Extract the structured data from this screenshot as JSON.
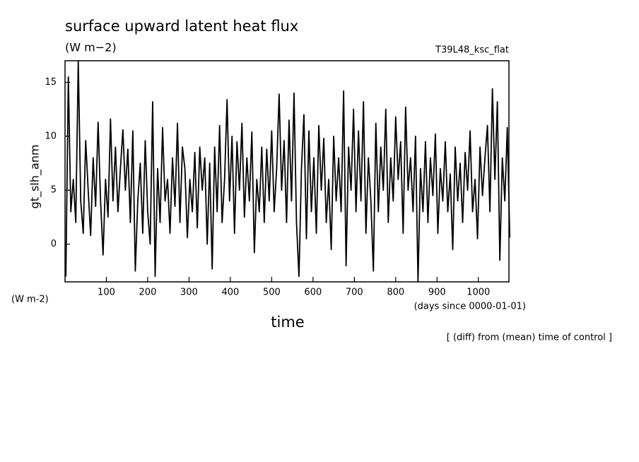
{
  "chart_data": {
    "type": "line",
    "title": "surface upward latent heat flux",
    "subtitle": "(W m−2)",
    "run_label": "T39L48_ksc_flat",
    "y_label": "gt_slh_anm",
    "y_units": "(W m-2)",
    "x_label": "time",
    "x_units": "(days since 0000-01-01)",
    "note": "[ (diff) from (mean) time of control ]",
    "xlim": [
      0,
      1074
    ],
    "ylim": [
      -3.5,
      17
    ],
    "xticks": [
      100,
      200,
      300,
      400,
      500,
      600,
      700,
      800,
      900,
      1000
    ],
    "yticks": [
      0,
      5,
      10,
      15
    ],
    "color": "#000000",
    "x": [
      2,
      8,
      14,
      20,
      26,
      32,
      38,
      44,
      50,
      56,
      62,
      68,
      74,
      80,
      86,
      92,
      98,
      104,
      110,
      116,
      122,
      128,
      134,
      140,
      146,
      152,
      158,
      164,
      170,
      176,
      182,
      188,
      194,
      200,
      206,
      212,
      218,
      224,
      230,
      236,
      242,
      248,
      254,
      260,
      266,
      272,
      278,
      284,
      290,
      296,
      302,
      308,
      314,
      320,
      326,
      332,
      338,
      344,
      350,
      356,
      362,
      368,
      374,
      380,
      386,
      392,
      398,
      404,
      410,
      416,
      422,
      428,
      434,
      440,
      446,
      452,
      458,
      464,
      470,
      476,
      482,
      488,
      494,
      500,
      506,
      512,
      518,
      524,
      530,
      536,
      542,
      548,
      554,
      560,
      566,
      572,
      578,
      584,
      590,
      596,
      602,
      608,
      614,
      620,
      626,
      632,
      638,
      644,
      650,
      656,
      662,
      668,
      674,
      680,
      686,
      692,
      698,
      704,
      710,
      716,
      722,
      728,
      734,
      740,
      746,
      752,
      758,
      764,
      770,
      776,
      782,
      788,
      794,
      800,
      806,
      812,
      818,
      824,
      830,
      836,
      842,
      848,
      854,
      860,
      866,
      872,
      878,
      884,
      890,
      896,
      902,
      908,
      914,
      920,
      926,
      932,
      938,
      944,
      950,
      956,
      962,
      968,
      974,
      980,
      986,
      992,
      998,
      1004,
      1010,
      1016,
      1022,
      1028,
      1034,
      1040,
      1046,
      1052,
      1058,
      1064,
      1070,
      1076
    ],
    "values": [
      -3,
      15.5,
      3,
      6,
      2,
      17,
      4,
      1,
      9.6,
      5,
      0.8,
      8,
      3.5,
      11.3,
      4,
      -1,
      6,
      2.5,
      11.6,
      4,
      9,
      3,
      7,
      10.6,
      5,
      8.8,
      2,
      10.5,
      -2.5,
      4,
      7.5,
      1,
      9.6,
      3,
      0,
      13.2,
      -3,
      7,
      2,
      10.8,
      4,
      6,
      1,
      8,
      3.5,
      11.2,
      2,
      9,
      7,
      0.6,
      6,
      3,
      8.5,
      1.5,
      9,
      5,
      8,
      0,
      7.5,
      -2.3,
      9,
      3,
      11,
      2,
      6,
      13.4,
      4,
      10,
      1,
      9.5,
      5,
      11.2,
      2.5,
      8,
      4,
      10.4,
      -0.8,
      6,
      3,
      9,
      2,
      8.8,
      4,
      10.5,
      3,
      7,
      13.9,
      5,
      9.6,
      2,
      11.5,
      4,
      14,
      2,
      -3,
      7,
      12,
      0.5,
      10.5,
      3,
      8,
      1,
      11,
      5,
      9.8,
      2,
      6,
      -0.5,
      10,
      4,
      8,
      3,
      14.2,
      -2,
      9,
      5,
      12.5,
      3,
      10.5,
      4,
      13.2,
      1,
      8,
      4,
      -2.5,
      11.2,
      3,
      9,
      5,
      12.5,
      2,
      8,
      4,
      11.8,
      6,
      9.5,
      1,
      12.7,
      5,
      8,
      3,
      10,
      -3.5,
      7,
      3,
      9.5,
      2,
      8,
      4.5,
      10.2,
      1,
      7,
      4,
      9.5,
      3,
      6.5,
      -0.5,
      9,
      4,
      7.5,
      2,
      8.5,
      5,
      10.5,
      3,
      6,
      0.5,
      9,
      4.5,
      8,
      11,
      3,
      14.4,
      6,
      13.2,
      -1.5,
      8,
      4,
      10.8,
      0.6
    ]
  }
}
